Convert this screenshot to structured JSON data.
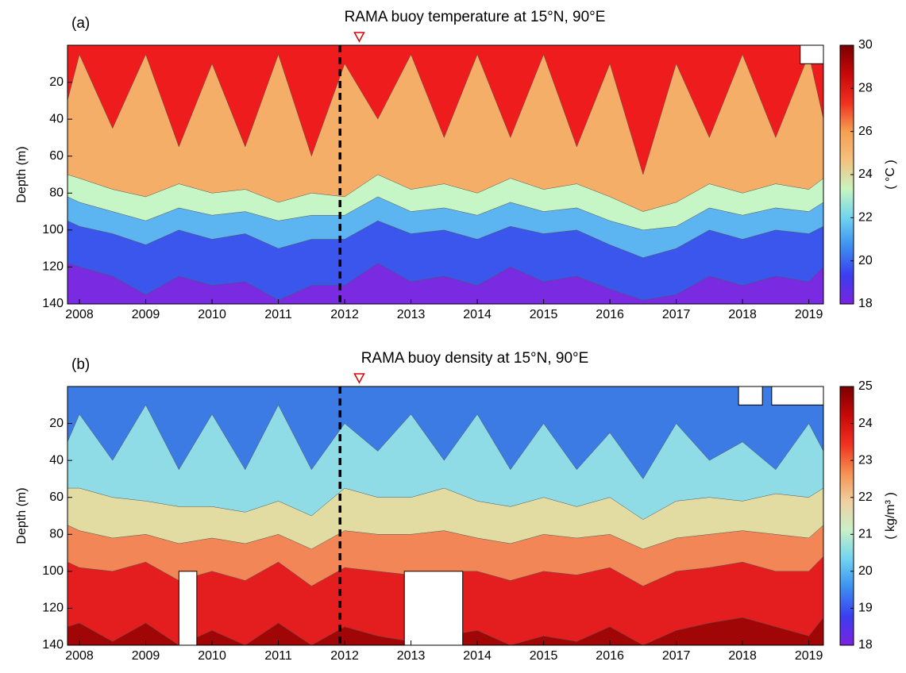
{
  "chart_data": [
    {
      "type": "contourf",
      "panel_label": "(a)",
      "title": "RAMA buoy temperature at 15°N, 90°E",
      "y_label": "Depth (m)",
      "colorbar_label": "( °C )",
      "xlim": [
        2007.82,
        2019.22
      ],
      "xticks": [
        2008,
        2009,
        2010,
        2011,
        2012,
        2013,
        2014,
        2015,
        2016,
        2017,
        2018,
        2019
      ],
      "ylim": [
        0,
        140
      ],
      "y_inverted": true,
      "yticks": [
        20,
        40,
        60,
        80,
        100,
        120,
        140
      ],
      "clim": [
        18,
        30
      ],
      "cticks": [
        18,
        20,
        22,
        24,
        26,
        28,
        30
      ],
      "colorbar_colors": [
        "#7b22e0",
        "#3a3ef0",
        "#3c8ef0",
        "#70d4f0",
        "#c8f5c0",
        "#f5c080",
        "#f5a050",
        "#f03020",
        "#c80808",
        "#7a0000"
      ],
      "top_color": "#ee1c1c",
      "x": [
        2007.82,
        2008,
        2008.5,
        2009,
        2009.5,
        2010,
        2010.5,
        2011,
        2011.5,
        2012,
        2012.5,
        2013,
        2013.5,
        2014,
        2014.5,
        2015,
        2015.5,
        2016,
        2016.5,
        2017,
        2017.5,
        2018,
        2018.5,
        2019,
        2019.22
      ],
      "layers": [
        {
          "color": "#f5ae68",
          "depths": [
            30,
            5,
            45,
            5,
            55,
            10,
            55,
            5,
            60,
            10,
            40,
            5,
            50,
            5,
            50,
            5,
            55,
            10,
            70,
            10,
            50,
            5,
            50,
            5,
            40
          ]
        },
        {
          "color": "#c6f5c6",
          "depths": [
            70,
            72,
            78,
            82,
            75,
            80,
            78,
            85,
            80,
            82,
            70,
            78,
            75,
            80,
            72,
            78,
            75,
            82,
            90,
            85,
            75,
            80,
            75,
            78,
            72
          ]
        },
        {
          "color": "#5cb4f0",
          "depths": [
            82,
            85,
            90,
            95,
            88,
            92,
            90,
            95,
            92,
            92,
            82,
            90,
            88,
            92,
            85,
            90,
            88,
            95,
            100,
            98,
            88,
            92,
            88,
            90,
            85
          ]
        },
        {
          "color": "#3a56ec",
          "depths": [
            95,
            98,
            102,
            108,
            100,
            105,
            102,
            110,
            105,
            105,
            95,
            102,
            100,
            105,
            98,
            102,
            100,
            108,
            115,
            110,
            100,
            105,
            100,
            102,
            98
          ]
        },
        {
          "color": "#7a2ae0",
          "depths": [
            118,
            120,
            125,
            135,
            125,
            130,
            128,
            138,
            130,
            130,
            118,
            128,
            125,
            130,
            120,
            128,
            125,
            132,
            138,
            135,
            125,
            130,
            125,
            128,
            120
          ]
        }
      ],
      "gaps": [
        [
          2018.87,
          2019.22,
          0,
          10
        ]
      ],
      "vline_x": 2011.93,
      "marker_x": 2012.22,
      "marker_color": "#e00000"
    },
    {
      "type": "contourf",
      "panel_label": "(b)",
      "title": "RAMA buoy density at 15°N, 90°E",
      "y_label": "Depth (m)",
      "colorbar_label": "( kg/m³ )",
      "xlim": [
        2007.82,
        2019.22
      ],
      "xticks": [
        2008,
        2009,
        2010,
        2011,
        2012,
        2013,
        2014,
        2015,
        2016,
        2017,
        2018,
        2019
      ],
      "ylim": [
        0,
        140
      ],
      "y_inverted": true,
      "yticks": [
        20,
        40,
        60,
        80,
        100,
        120,
        140
      ],
      "clim": [
        18,
        25
      ],
      "cticks": [
        18,
        19,
        20,
        21,
        22,
        23,
        24,
        25
      ],
      "colorbar_colors": [
        "#7b22e0",
        "#3a3ef0",
        "#3c8ef0",
        "#70d4f0",
        "#c8f0c8",
        "#f0d0a0",
        "#f59050",
        "#f03020",
        "#c80808",
        "#7a0000"
      ],
      "top_color": "#3c7ae4",
      "x": [
        2007.82,
        2008,
        2008.5,
        2009,
        2009.5,
        2010,
        2010.5,
        2011,
        2011.5,
        2012,
        2012.5,
        2013,
        2013.5,
        2014,
        2014.5,
        2015,
        2015.5,
        2016,
        2016.5,
        2017,
        2017.5,
        2018,
        2018.5,
        2019,
        2019.22
      ],
      "layers": [
        {
          "color": "#90dce6",
          "depths": [
            30,
            15,
            40,
            10,
            45,
            15,
            45,
            10,
            45,
            20,
            35,
            15,
            40,
            15,
            45,
            20,
            45,
            25,
            50,
            20,
            40,
            30,
            45,
            20,
            35
          ]
        },
        {
          "color": "#e2dca2",
          "depths": [
            55,
            55,
            60,
            62,
            65,
            65,
            68,
            62,
            70,
            55,
            60,
            60,
            55,
            62,
            65,
            60,
            65,
            60,
            72,
            62,
            60,
            62,
            58,
            60,
            55
          ]
        },
        {
          "color": "#f28656",
          "depths": [
            75,
            78,
            82,
            80,
            85,
            82,
            85,
            80,
            88,
            78,
            80,
            80,
            78,
            82,
            85,
            80,
            82,
            80,
            88,
            82,
            80,
            78,
            80,
            82,
            75
          ]
        },
        {
          "color": "#e41e1e",
          "depths": [
            95,
            98,
            100,
            95,
            105,
            100,
            105,
            95,
            108,
            98,
            100,
            102,
            100,
            100,
            105,
            100,
            102,
            98,
            108,
            100,
            98,
            95,
            100,
            100,
            92
          ]
        },
        {
          "color": "#a00606",
          "depths": [
            130,
            128,
            138,
            128,
            140,
            132,
            140,
            128,
            140,
            130,
            135,
            138,
            135,
            132,
            140,
            135,
            138,
            130,
            140,
            132,
            128,
            125,
            130,
            135,
            125
          ]
        }
      ],
      "gaps": [
        [
          2009.5,
          2009.77,
          100,
          140
        ],
        [
          2012.9,
          2013.78,
          100,
          140
        ],
        [
          2017.94,
          2018.3,
          0,
          10
        ],
        [
          2018.44,
          2019.22,
          0,
          10
        ]
      ],
      "vline_x": 2011.93,
      "marker_x": 2012.22,
      "marker_color": "#e00000"
    }
  ]
}
